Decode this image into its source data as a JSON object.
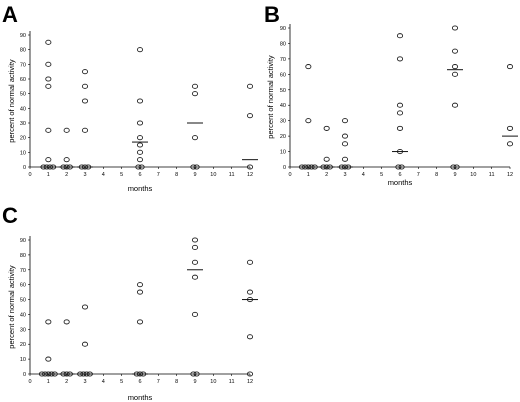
{
  "chart_data": [
    {
      "panel": "A",
      "type": "scatter",
      "xlabel": "months",
      "ylabel": "percent of normal activity",
      "xlim": [
        0,
        12
      ],
      "ylim": [
        0,
        90
      ],
      "xticks": [
        "0",
        "1",
        "2",
        "3",
        "4",
        "5",
        "6",
        "7",
        "8",
        "9",
        "10",
        "11",
        "12"
      ],
      "yticks": [
        "0",
        "10",
        "20",
        "30",
        "40",
        "50",
        "60",
        "70",
        "80",
        "90"
      ],
      "points": [
        {
          "x": 1,
          "y": 85
        },
        {
          "x": 1,
          "y": 70
        },
        {
          "x": 1,
          "y": 60
        },
        {
          "x": 1,
          "y": 55
        },
        {
          "x": 1,
          "y": 25
        },
        {
          "x": 1,
          "y": 5
        },
        {
          "x": 1,
          "y": 0
        },
        {
          "x": 1,
          "y": 0
        },
        {
          "x": 1,
          "y": 0
        },
        {
          "x": 1,
          "y": 0
        },
        {
          "x": 2,
          "y": 25
        },
        {
          "x": 2,
          "y": 5
        },
        {
          "x": 2,
          "y": 0
        },
        {
          "x": 2,
          "y": 0
        },
        {
          "x": 2,
          "y": 0
        },
        {
          "x": 3,
          "y": 65
        },
        {
          "x": 3,
          "y": 55
        },
        {
          "x": 3,
          "y": 45
        },
        {
          "x": 3,
          "y": 25
        },
        {
          "x": 3,
          "y": 0
        },
        {
          "x": 3,
          "y": 0
        },
        {
          "x": 3,
          "y": 0
        },
        {
          "x": 6,
          "y": 80
        },
        {
          "x": 6,
          "y": 45
        },
        {
          "x": 6,
          "y": 30
        },
        {
          "x": 6,
          "y": 20
        },
        {
          "x": 6,
          "y": 15
        },
        {
          "x": 6,
          "y": 10
        },
        {
          "x": 6,
          "y": 5
        },
        {
          "x": 6,
          "y": 0
        },
        {
          "x": 6,
          "y": 0
        },
        {
          "x": 9,
          "y": 55
        },
        {
          "x": 9,
          "y": 50
        },
        {
          "x": 9,
          "y": 20
        },
        {
          "x": 9,
          "y": 0
        },
        {
          "x": 9,
          "y": 0
        },
        {
          "x": 12,
          "y": 55
        },
        {
          "x": 12,
          "y": 35
        },
        {
          "x": 12,
          "y": 0
        }
      ],
      "medians": [
        {
          "x": 1,
          "y": 0
        },
        {
          "x": 2,
          "y": 0
        },
        {
          "x": 3,
          "y": 0
        },
        {
          "x": 6,
          "y": 17
        },
        {
          "x": 9,
          "y": 30
        },
        {
          "x": 12,
          "y": 5
        }
      ]
    },
    {
      "panel": "B",
      "type": "scatter",
      "xlabel": "months",
      "ylabel": "percent of normal activity",
      "xlim": [
        0,
        12
      ],
      "ylim": [
        0,
        90
      ],
      "xticks": [
        "0",
        "1",
        "2",
        "3",
        "4",
        "5",
        "6",
        "7",
        "8",
        "9",
        "10",
        "11",
        "12"
      ],
      "yticks": [
        "0",
        "10",
        "20",
        "30",
        "40",
        "50",
        "60",
        "70",
        "80",
        "90"
      ],
      "points": [
        {
          "x": 1,
          "y": 65
        },
        {
          "x": 1,
          "y": 30
        },
        {
          "x": 1,
          "y": 0
        },
        {
          "x": 1,
          "y": 0
        },
        {
          "x": 1,
          "y": 0
        },
        {
          "x": 1,
          "y": 0
        },
        {
          "x": 1,
          "y": 0
        },
        {
          "x": 2,
          "y": 25
        },
        {
          "x": 2,
          "y": 5
        },
        {
          "x": 2,
          "y": 0
        },
        {
          "x": 2,
          "y": 0
        },
        {
          "x": 2,
          "y": 0
        },
        {
          "x": 3,
          "y": 30
        },
        {
          "x": 3,
          "y": 20
        },
        {
          "x": 3,
          "y": 15
        },
        {
          "x": 3,
          "y": 5
        },
        {
          "x": 3,
          "y": 0
        },
        {
          "x": 3,
          "y": 0
        },
        {
          "x": 3,
          "y": 0
        },
        {
          "x": 6,
          "y": 85
        },
        {
          "x": 6,
          "y": 70
        },
        {
          "x": 6,
          "y": 40
        },
        {
          "x": 6,
          "y": 35
        },
        {
          "x": 6,
          "y": 25
        },
        {
          "x": 6,
          "y": 10
        },
        {
          "x": 6,
          "y": 0
        },
        {
          "x": 6,
          "y": 0
        },
        {
          "x": 9,
          "y": 90
        },
        {
          "x": 9,
          "y": 75
        },
        {
          "x": 9,
          "y": 65
        },
        {
          "x": 9,
          "y": 60
        },
        {
          "x": 9,
          "y": 40
        },
        {
          "x": 9,
          "y": 0
        },
        {
          "x": 9,
          "y": 0
        },
        {
          "x": 12,
          "y": 65
        },
        {
          "x": 12,
          "y": 25
        },
        {
          "x": 12,
          "y": 15
        }
      ],
      "medians": [
        {
          "x": 1,
          "y": 0
        },
        {
          "x": 2,
          "y": 0
        },
        {
          "x": 3,
          "y": 0
        },
        {
          "x": 6,
          "y": 10
        },
        {
          "x": 9,
          "y": 63
        },
        {
          "x": 12,
          "y": 20
        }
      ]
    },
    {
      "panel": "C",
      "type": "scatter",
      "xlabel": "months",
      "ylabel": "percent of normal activity",
      "xlim": [
        0,
        12
      ],
      "ylim": [
        0,
        90
      ],
      "xticks": [
        "0",
        "1",
        "2",
        "3",
        "4",
        "5",
        "6",
        "7",
        "8",
        "9",
        "10",
        "11",
        "12"
      ],
      "yticks": [
        "0",
        "10",
        "20",
        "30",
        "40",
        "50",
        "60",
        "70",
        "80",
        "90"
      ],
      "points": [
        {
          "x": 1,
          "y": 35
        },
        {
          "x": 1,
          "y": 10
        },
        {
          "x": 1,
          "y": 0
        },
        {
          "x": 1,
          "y": 0
        },
        {
          "x": 1,
          "y": 0
        },
        {
          "x": 1,
          "y": 0
        },
        {
          "x": 1,
          "y": 0
        },
        {
          "x": 2,
          "y": 35
        },
        {
          "x": 2,
          "y": 0
        },
        {
          "x": 2,
          "y": 0
        },
        {
          "x": 2,
          "y": 0
        },
        {
          "x": 3,
          "y": 45
        },
        {
          "x": 3,
          "y": 20
        },
        {
          "x": 3,
          "y": 0
        },
        {
          "x": 3,
          "y": 0
        },
        {
          "x": 3,
          "y": 0
        },
        {
          "x": 3,
          "y": 0
        },
        {
          "x": 6,
          "y": 60
        },
        {
          "x": 6,
          "y": 55
        },
        {
          "x": 6,
          "y": 35
        },
        {
          "x": 6,
          "y": 0
        },
        {
          "x": 6,
          "y": 0
        },
        {
          "x": 6,
          "y": 0
        },
        {
          "x": 9,
          "y": 90
        },
        {
          "x": 9,
          "y": 85
        },
        {
          "x": 9,
          "y": 75
        },
        {
          "x": 9,
          "y": 65
        },
        {
          "x": 9,
          "y": 40
        },
        {
          "x": 9,
          "y": 0
        },
        {
          "x": 9,
          "y": 0
        },
        {
          "x": 12,
          "y": 75
        },
        {
          "x": 12,
          "y": 55
        },
        {
          "x": 12,
          "y": 50
        },
        {
          "x": 12,
          "y": 25
        },
        {
          "x": 12,
          "y": 0
        }
      ],
      "medians": [
        {
          "x": 1,
          "y": 0
        },
        {
          "x": 2,
          "y": 0
        },
        {
          "x": 3,
          "y": 0
        },
        {
          "x": 6,
          "y": 0
        },
        {
          "x": 9,
          "y": 70
        },
        {
          "x": 12,
          "y": 50
        }
      ]
    }
  ]
}
